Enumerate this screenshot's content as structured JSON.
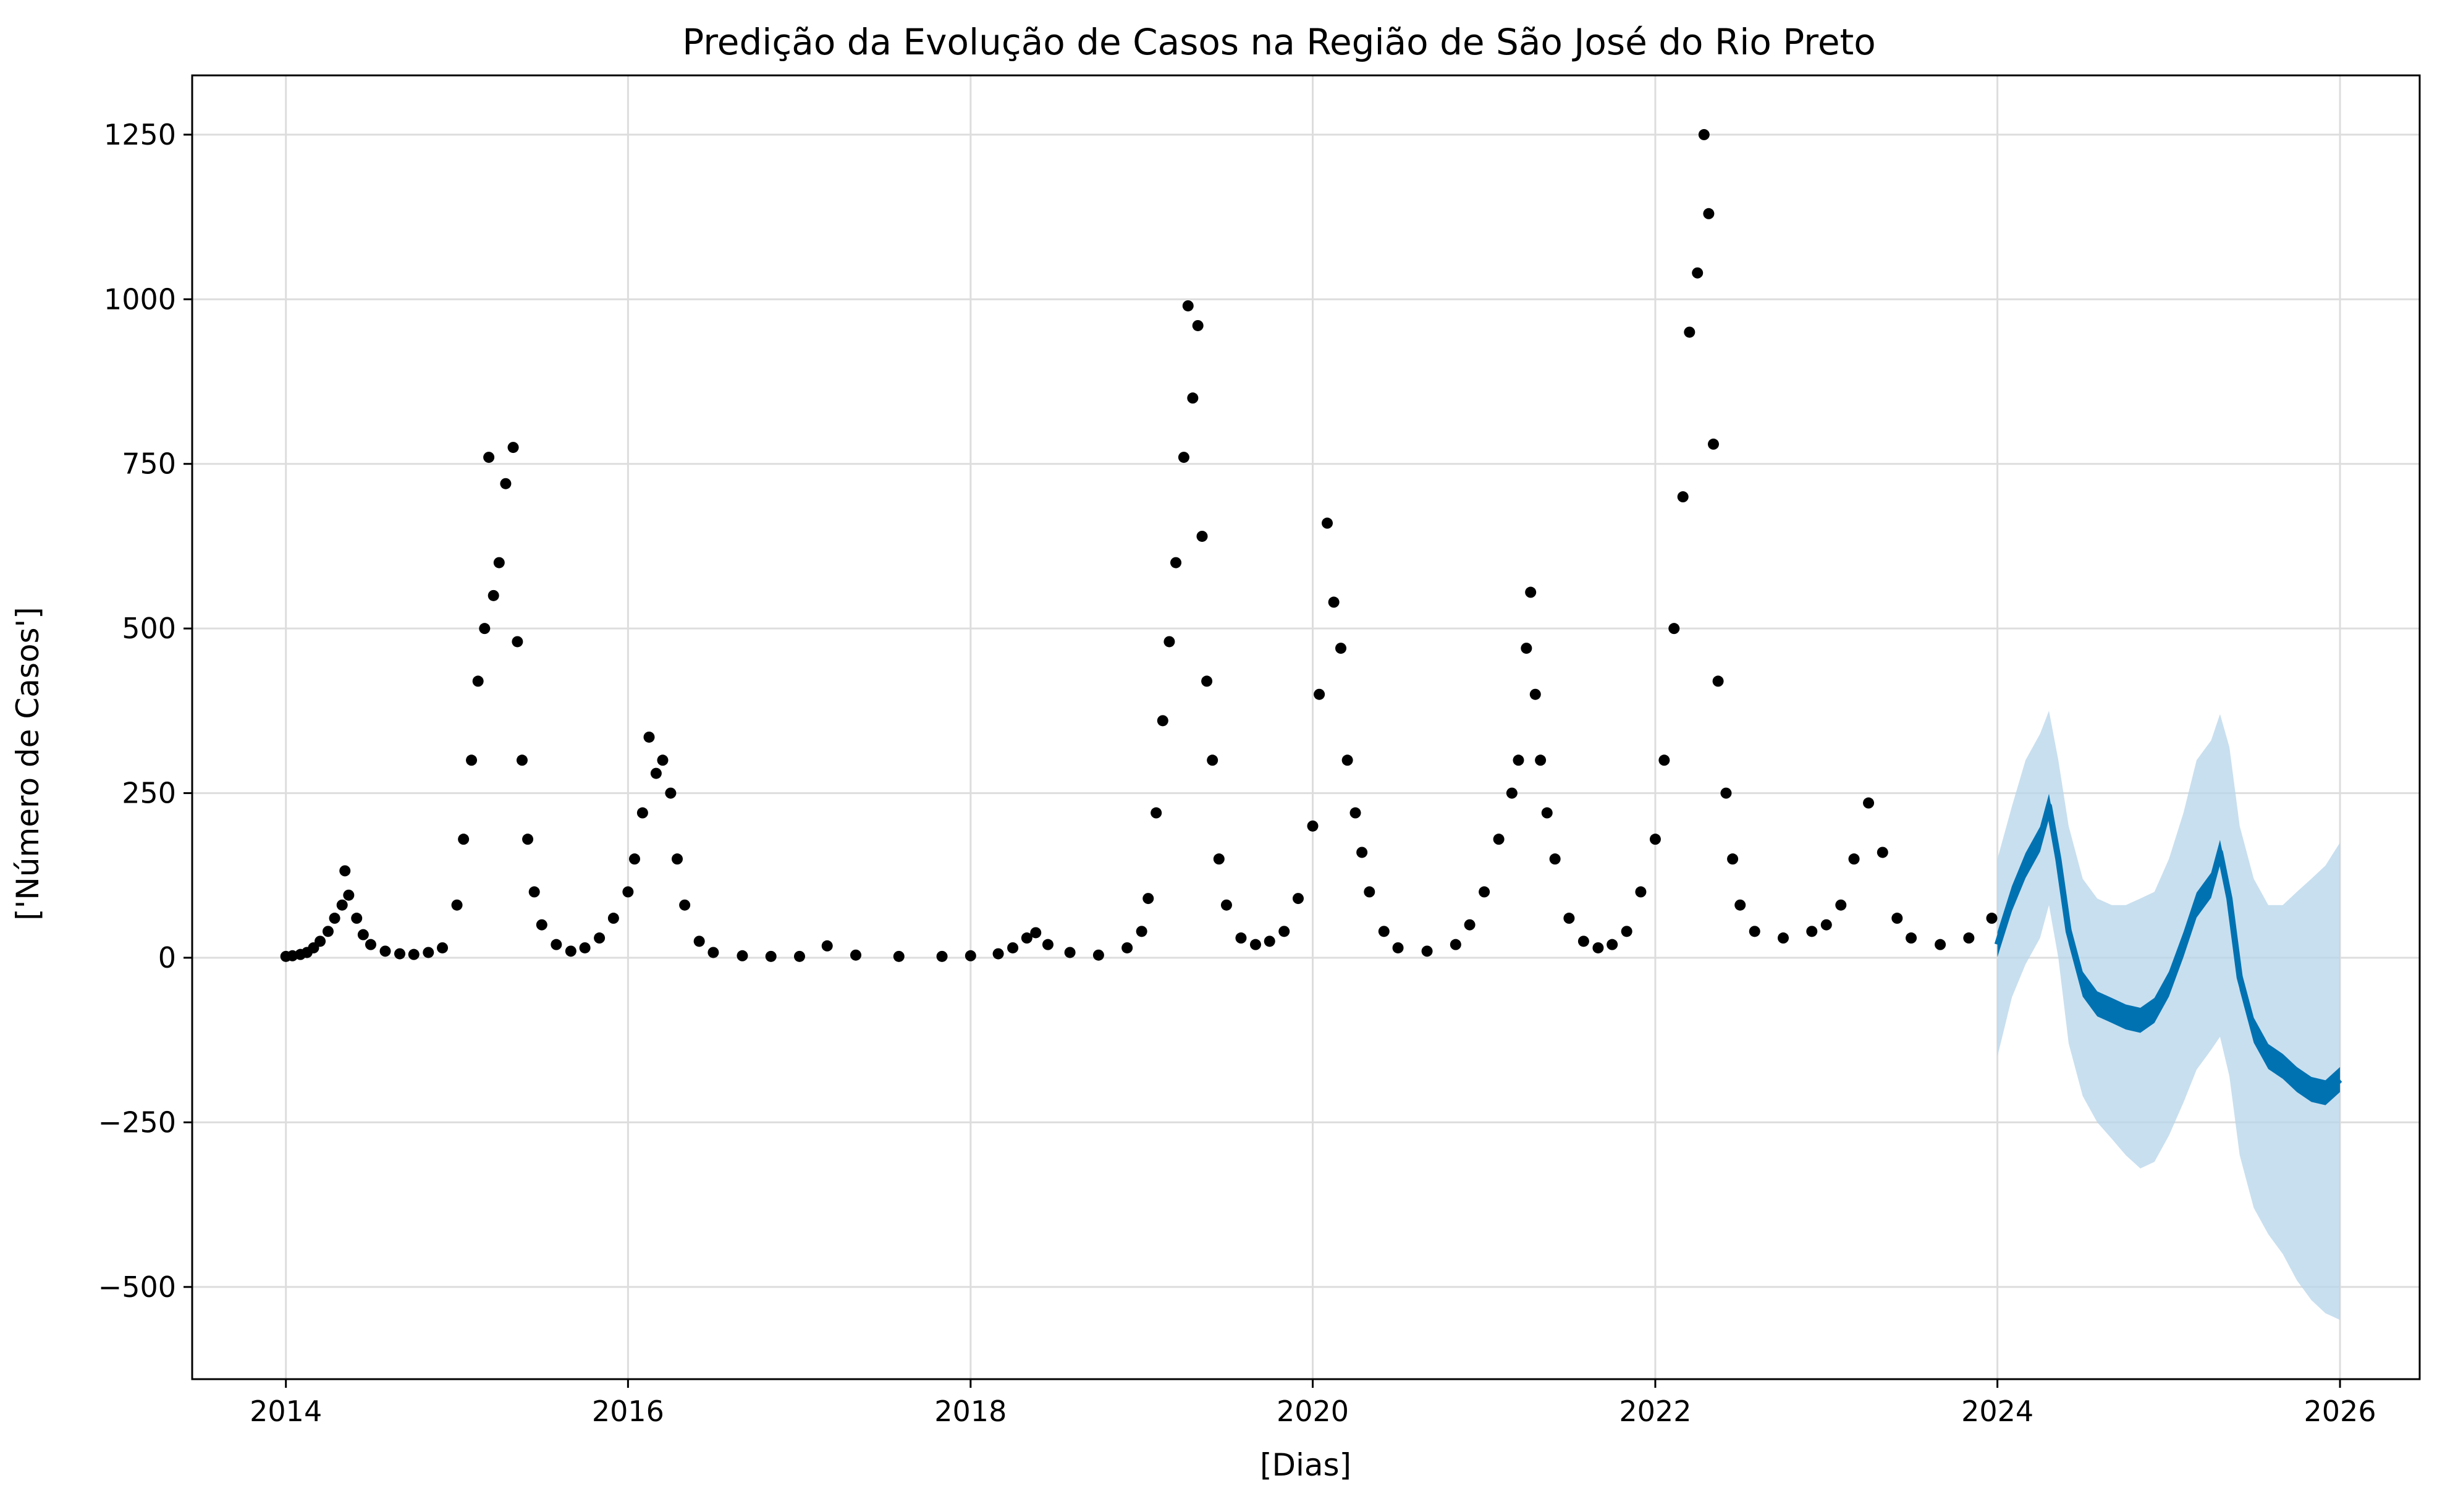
{
  "chart_data": {
    "type": "scatter",
    "title": "Predição da Evolução de Casos na Região de São José do Rio Preto",
    "xlabel": "[Dias]",
    "ylabel": "['Número de Casos']",
    "x_axis_type": "date",
    "xlim": [
      "2013-06-15",
      "2026-06-20"
    ],
    "ylim": [
      -640,
      1340
    ],
    "grid": true,
    "x_ticks": [
      {
        "value": "2014-01-01",
        "label": "2014"
      },
      {
        "value": "2016-01-01",
        "label": "2016"
      },
      {
        "value": "2018-01-01",
        "label": "2018"
      },
      {
        "value": "2020-01-01",
        "label": "2020"
      },
      {
        "value": "2022-01-01",
        "label": "2022"
      },
      {
        "value": "2024-01-01",
        "label": "2024"
      },
      {
        "value": "2026-01-01",
        "label": "2026"
      }
    ],
    "y_ticks": [
      {
        "value": 1250,
        "label": "1250"
      },
      {
        "value": 1000,
        "label": "1000"
      },
      {
        "value": 750,
        "label": "750"
      },
      {
        "value": 500,
        "label": "500"
      },
      {
        "value": 250,
        "label": "250"
      },
      {
        "value": 0,
        "label": "0"
      },
      {
        "value": -250,
        "label": "−250"
      },
      {
        "value": -500,
        "label": "−500"
      }
    ],
    "colors": {
      "observed": "#000000",
      "forecast": "#0072b2",
      "interval": "#b5d4ea",
      "grid": "#dddddd",
      "axis": "#000000"
    },
    "observed": {
      "points": [
        [
          "2014-01-01",
          2
        ],
        [
          "2014-01-15",
          3
        ],
        [
          "2014-02-01",
          5
        ],
        [
          "2014-02-15",
          8
        ],
        [
          "2014-03-01",
          15
        ],
        [
          "2014-03-15",
          25
        ],
        [
          "2014-04-01",
          40
        ],
        [
          "2014-04-15",
          60
        ],
        [
          "2014-05-01",
          80
        ],
        [
          "2014-05-07",
          132
        ],
        [
          "2014-05-15",
          95
        ],
        [
          "2014-06-01",
          60
        ],
        [
          "2014-06-15",
          35
        ],
        [
          "2014-07-01",
          20
        ],
        [
          "2014-08-01",
          10
        ],
        [
          "2014-09-01",
          6
        ],
        [
          "2014-10-01",
          5
        ],
        [
          "2014-11-01",
          8
        ],
        [
          "2014-12-01",
          15
        ],
        [
          "2015-01-01",
          80
        ],
        [
          "2015-01-15",
          180
        ],
        [
          "2015-02-01",
          300
        ],
        [
          "2015-02-15",
          420
        ],
        [
          "2015-03-01",
          500
        ],
        [
          "2015-03-10",
          760
        ],
        [
          "2015-03-20",
          550
        ],
        [
          "2015-04-01",
          600
        ],
        [
          "2015-04-15",
          720
        ],
        [
          "2015-05-01",
          775
        ],
        [
          "2015-05-10",
          480
        ],
        [
          "2015-05-20",
          300
        ],
        [
          "2015-06-01",
          180
        ],
        [
          "2015-06-15",
          100
        ],
        [
          "2015-07-01",
          50
        ],
        [
          "2015-08-01",
          20
        ],
        [
          "2015-09-01",
          10
        ],
        [
          "2015-10-01",
          15
        ],
        [
          "2015-11-01",
          30
        ],
        [
          "2015-12-01",
          60
        ],
        [
          "2016-01-01",
          100
        ],
        [
          "2016-01-15",
          150
        ],
        [
          "2016-02-01",
          220
        ],
        [
          "2016-02-15",
          335
        ],
        [
          "2016-03-01",
          280
        ],
        [
          "2016-03-15",
          300
        ],
        [
          "2016-04-01",
          250
        ],
        [
          "2016-04-15",
          150
        ],
        [
          "2016-05-01",
          80
        ],
        [
          "2016-06-01",
          25
        ],
        [
          "2016-07-01",
          8
        ],
        [
          "2016-09-01",
          3
        ],
        [
          "2016-11-01",
          2
        ],
        [
          "2017-01-01",
          2
        ],
        [
          "2017-03-01",
          18
        ],
        [
          "2017-05-01",
          4
        ],
        [
          "2017-08-01",
          2
        ],
        [
          "2017-11-01",
          2
        ],
        [
          "2018-01-01",
          3
        ],
        [
          "2018-03-01",
          6
        ],
        [
          "2018-04-01",
          15
        ],
        [
          "2018-05-01",
          30
        ],
        [
          "2018-05-20",
          38
        ],
        [
          "2018-06-15",
          20
        ],
        [
          "2018-08-01",
          8
        ],
        [
          "2018-10-01",
          4
        ],
        [
          "2018-12-01",
          15
        ],
        [
          "2019-01-01",
          40
        ],
        [
          "2019-01-15",
          90
        ],
        [
          "2019-02-01",
          220
        ],
        [
          "2019-02-15",
          360
        ],
        [
          "2019-03-01",
          480
        ],
        [
          "2019-03-15",
          600
        ],
        [
          "2019-04-01",
          760
        ],
        [
          "2019-04-10",
          990
        ],
        [
          "2019-04-20",
          850
        ],
        [
          "2019-05-01",
          960
        ],
        [
          "2019-05-10",
          640
        ],
        [
          "2019-05-20",
          420
        ],
        [
          "2019-06-01",
          300
        ],
        [
          "2019-06-15",
          150
        ],
        [
          "2019-07-01",
          80
        ],
        [
          "2019-08-01",
          30
        ],
        [
          "2019-09-01",
          20
        ],
        [
          "2019-10-01",
          25
        ],
        [
          "2019-11-01",
          40
        ],
        [
          "2019-12-01",
          90
        ],
        [
          "2020-01-01",
          200
        ],
        [
          "2020-01-15",
          400
        ],
        [
          "2020-02-01",
          660
        ],
        [
          "2020-02-15",
          540
        ],
        [
          "2020-03-01",
          470
        ],
        [
          "2020-03-15",
          300
        ],
        [
          "2020-04-01",
          220
        ],
        [
          "2020-04-15",
          160
        ],
        [
          "2020-05-01",
          100
        ],
        [
          "2020-06-01",
          40
        ],
        [
          "2020-07-01",
          15
        ],
        [
          "2020-09-01",
          10
        ],
        [
          "2020-11-01",
          20
        ],
        [
          "2020-12-01",
          50
        ],
        [
          "2021-01-01",
          100
        ],
        [
          "2021-02-01",
          180
        ],
        [
          "2021-03-01",
          250
        ],
        [
          "2021-03-15",
          300
        ],
        [
          "2021-04-01",
          470
        ],
        [
          "2021-04-10",
          555
        ],
        [
          "2021-04-20",
          400
        ],
        [
          "2021-05-01",
          300
        ],
        [
          "2021-05-15",
          220
        ],
        [
          "2021-06-01",
          150
        ],
        [
          "2021-07-01",
          60
        ],
        [
          "2021-08-01",
          25
        ],
        [
          "2021-09-01",
          15
        ],
        [
          "2021-10-01",
          20
        ],
        [
          "2021-11-01",
          40
        ],
        [
          "2021-12-01",
          100
        ],
        [
          "2022-01-01",
          180
        ],
        [
          "2022-01-20",
          300
        ],
        [
          "2022-02-10",
          500
        ],
        [
          "2022-03-01",
          700
        ],
        [
          "2022-03-15",
          950
        ],
        [
          "2022-04-01",
          1040
        ],
        [
          "2022-04-15",
          1250
        ],
        [
          "2022-04-25",
          1130
        ],
        [
          "2022-05-05",
          780
        ],
        [
          "2022-05-15",
          420
        ],
        [
          "2022-06-01",
          250
        ],
        [
          "2022-06-15",
          150
        ],
        [
          "2022-07-01",
          80
        ],
        [
          "2022-08-01",
          40
        ],
        [
          "2022-10-01",
          30
        ],
        [
          "2022-12-01",
          40
        ],
        [
          "2023-01-01",
          50
        ],
        [
          "2023-02-01",
          80
        ],
        [
          "2023-03-01",
          150
        ],
        [
          "2023-04-01",
          235
        ],
        [
          "2023-05-01",
          160
        ],
        [
          "2023-06-01",
          60
        ],
        [
          "2023-07-01",
          30
        ],
        [
          "2023-09-01",
          20
        ],
        [
          "2023-11-01",
          30
        ],
        [
          "2023-12-20",
          60
        ]
      ]
    },
    "forecast": {
      "yhat": [
        [
          "2024-01-01",
          20
        ],
        [
          "2024-02-01",
          90
        ],
        [
          "2024-03-01",
          140
        ],
        [
          "2024-04-01",
          180
        ],
        [
          "2024-04-20",
          230
        ],
        [
          "2024-05-10",
          150
        ],
        [
          "2024-06-01",
          40
        ],
        [
          "2024-07-01",
          -40
        ],
        [
          "2024-08-01",
          -70
        ],
        [
          "2024-09-01",
          -80
        ],
        [
          "2024-10-01",
          -90
        ],
        [
          "2024-11-01",
          -95
        ],
        [
          "2024-12-01",
          -80
        ],
        [
          "2025-01-01",
          -40
        ],
        [
          "2025-02-01",
          20
        ],
        [
          "2025-03-01",
          80
        ],
        [
          "2025-04-01",
          110
        ],
        [
          "2025-04-20",
          160
        ],
        [
          "2025-05-10",
          90
        ],
        [
          "2025-06-01",
          -30
        ],
        [
          "2025-07-01",
          -110
        ],
        [
          "2025-08-01",
          -150
        ],
        [
          "2025-09-01",
          -165
        ],
        [
          "2025-10-01",
          -185
        ],
        [
          "2025-11-01",
          -200
        ],
        [
          "2025-12-01",
          -205
        ],
        [
          "2026-01-01",
          -185
        ]
      ],
      "band_width": 38,
      "interval": [
        [
          "2024-01-01",
          -150,
          150
        ],
        [
          "2024-02-01",
          -60,
          230
        ],
        [
          "2024-03-01",
          -10,
          300
        ],
        [
          "2024-04-01",
          30,
          340
        ],
        [
          "2024-04-20",
          80,
          375
        ],
        [
          "2024-05-10",
          0,
          300
        ],
        [
          "2024-06-01",
          -130,
          200
        ],
        [
          "2024-07-01",
          -210,
          120
        ],
        [
          "2024-08-01",
          -250,
          90
        ],
        [
          "2024-09-01",
          -275,
          80
        ],
        [
          "2024-10-01",
          -300,
          80
        ],
        [
          "2024-11-01",
          -320,
          90
        ],
        [
          "2024-12-01",
          -310,
          100
        ],
        [
          "2025-01-01",
          -270,
          150
        ],
        [
          "2025-02-01",
          -220,
          220
        ],
        [
          "2025-03-01",
          -170,
          300
        ],
        [
          "2025-04-01",
          -140,
          330
        ],
        [
          "2025-04-20",
          -120,
          370
        ],
        [
          "2025-05-10",
          -180,
          320
        ],
        [
          "2025-06-01",
          -300,
          200
        ],
        [
          "2025-07-01",
          -380,
          120
        ],
        [
          "2025-08-01",
          -420,
          80
        ],
        [
          "2025-09-01",
          -450,
          80
        ],
        [
          "2025-10-01",
          -490,
          100
        ],
        [
          "2025-11-01",
          -520,
          120
        ],
        [
          "2025-12-01",
          -540,
          140
        ],
        [
          "2026-01-01",
          -550,
          175
        ]
      ]
    }
  }
}
